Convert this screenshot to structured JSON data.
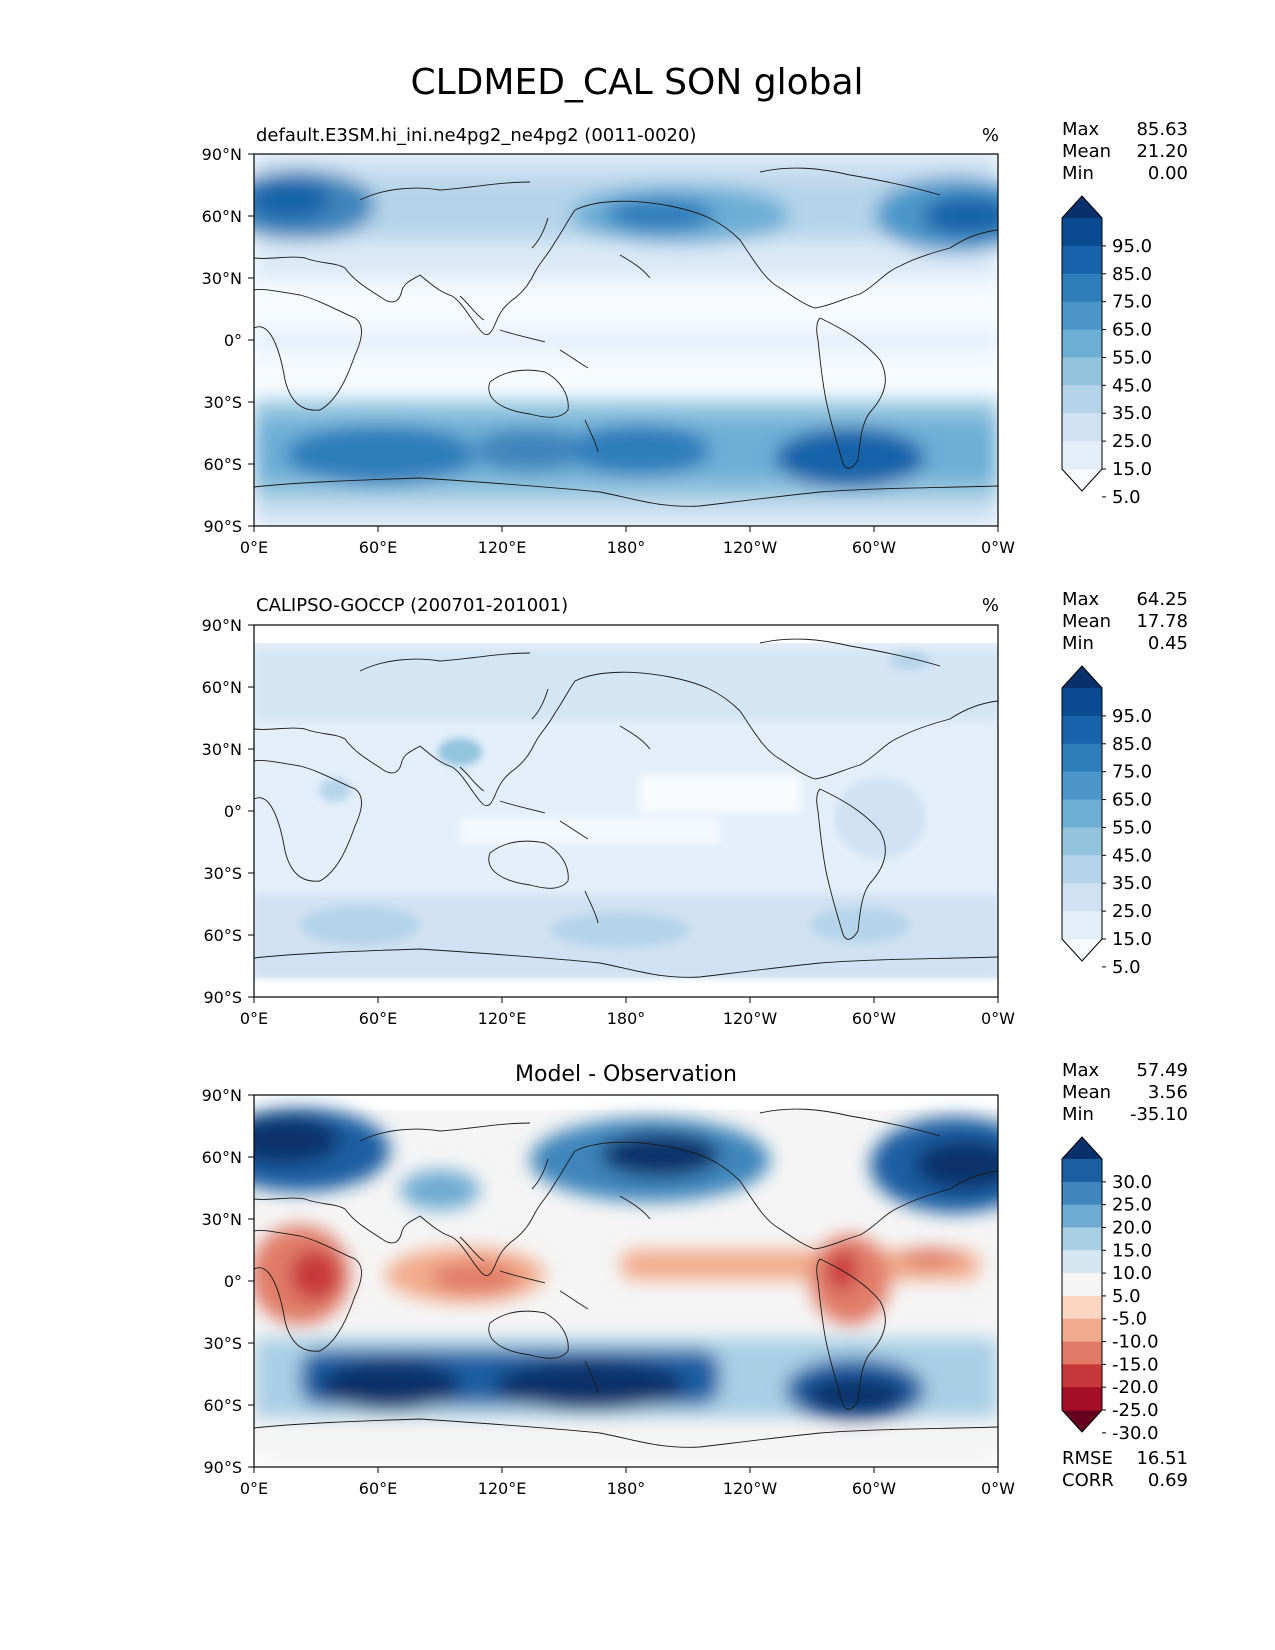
{
  "title": "CLDMED_CAL SON global",
  "x_ticks": [
    "0°E",
    "60°E",
    "120°E",
    "180°",
    "120°W",
    "60°W",
    "0°W"
  ],
  "y_ticks": [
    "90°N",
    "60°N",
    "30°N",
    "0°",
    "30°S",
    "60°S",
    "90°S"
  ],
  "panels": [
    {
      "left_title": "default.E3SM.hi_ini.ne4pg2_ne4pg2 (0011-0020)",
      "center_title": "",
      "units": "%",
      "stats": [
        {
          "label": "Max",
          "value": "85.63"
        },
        {
          "label": "Mean",
          "value": "21.20"
        },
        {
          "label": "Min",
          "value": "0.00"
        }
      ],
      "colorbar": {
        "labels": [
          "95.0",
          "85.0",
          "75.0",
          "65.0",
          "55.0",
          "45.0",
          "35.0",
          "25.0",
          "15.0",
          "5.0"
        ],
        "colors": [
          "#f7fbff",
          "#e3eef9",
          "#cfe1f2",
          "#b5d4e9",
          "#93c4de",
          "#6daed5",
          "#4b97c9",
          "#2f7ebc",
          "#1864aa",
          "#0a4a90",
          "#08306b"
        ]
      },
      "footer_stats": []
    },
    {
      "left_title": "CALIPSO-GOCCP (200701-201001)",
      "center_title": "",
      "units": "%",
      "stats": [
        {
          "label": "Max",
          "value": "64.25"
        },
        {
          "label": "Mean",
          "value": "17.78"
        },
        {
          "label": "Min",
          "value": "0.45"
        }
      ],
      "colorbar": {
        "labels": [
          "95.0",
          "85.0",
          "75.0",
          "65.0",
          "55.0",
          "45.0",
          "35.0",
          "25.0",
          "15.0",
          "5.0"
        ],
        "colors": [
          "#f7fbff",
          "#e3eef9",
          "#cfe1f2",
          "#b5d4e9",
          "#93c4de",
          "#6daed5",
          "#4b97c9",
          "#2f7ebc",
          "#1864aa",
          "#0a4a90",
          "#08306b"
        ]
      },
      "footer_stats": []
    },
    {
      "left_title": "",
      "center_title": "Model - Observation",
      "units": "",
      "stats": [
        {
          "label": "Max",
          "value": "57.49"
        },
        {
          "label": "Mean",
          "value": "3.56"
        },
        {
          "label": "Min",
          "value": "-35.10"
        }
      ],
      "colorbar": {
        "labels": [
          "30.0",
          "25.0",
          "20.0",
          "15.0",
          "10.0",
          "5.0",
          "-5.0",
          "-10.0",
          "-15.0",
          "-20.0",
          "-25.0",
          "-30.0"
        ],
        "colors": [
          "#67001f",
          "#a50f26",
          "#c8383b",
          "#e07b68",
          "#f2ab8c",
          "#fbd6c3",
          "#f5f5f5",
          "#d6e6f1",
          "#a9cfe5",
          "#6eaad1",
          "#3f86bc",
          "#1b5fa3",
          "#08306b"
        ]
      },
      "footer_stats": [
        {
          "label": "RMSE",
          "value": "16.51"
        },
        {
          "label": "CORR",
          "value": "0.69"
        }
      ]
    }
  ]
}
